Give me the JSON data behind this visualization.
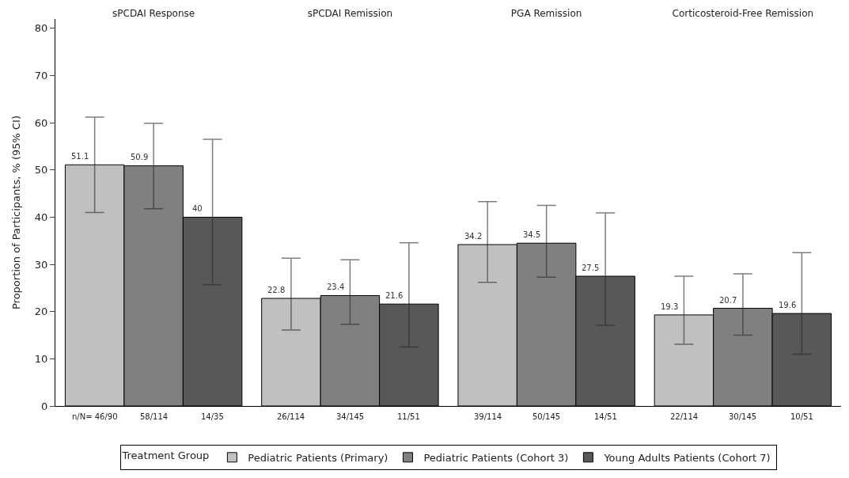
{
  "chart_data": {
    "type": "bar",
    "ylabel": "Proportion of Participants, % (95% CI)",
    "legend_title": "Treatment Group",
    "categories": [
      "sPCDAI Response",
      "sPCDAI Remission",
      "PGA Remission",
      "Corticosteroid-Free Remission"
    ],
    "series": [
      {
        "name": "Pediatric Patients (Primary)",
        "color": "#c0c0c0",
        "values": [
          51.1,
          22.8,
          34.2,
          19.3
        ],
        "errors": [
          [
            41.0,
            61.2
          ],
          [
            16.1,
            31.3
          ],
          [
            26.2,
            43.3
          ],
          [
            13.1,
            27.5
          ]
        ]
      },
      {
        "name": "Pediatric Patients (Cohort 3)",
        "color": "#808080",
        "values": [
          50.9,
          23.4,
          34.5,
          20.7
        ],
        "errors": [
          [
            41.8,
            59.9
          ],
          [
            17.3,
            31.0
          ],
          [
            27.3,
            42.5
          ],
          [
            15.0,
            28.0
          ]
        ]
      },
      {
        "name": "Young Adults Patients (Cohort 7)",
        "color": "#585858",
        "values": [
          40,
          21.6,
          27.5,
          19.6
        ],
        "errors": [
          [
            25.7,
            56.5
          ],
          [
            12.5,
            34.6
          ],
          [
            17.1,
            40.9
          ],
          [
            11.0,
            32.5
          ]
        ]
      }
    ],
    "annotations": [
      "n/N= 46/90",
      "58/114",
      "14/35",
      "26/114",
      "34/145",
      "11/51",
      "39/114",
      "50/145",
      "14/51",
      "22/114",
      "30/145",
      "10/51"
    ],
    "data_labels": true,
    "ylim": [
      0,
      82
    ],
    "yticks": [
      0,
      10,
      20,
      30,
      40,
      50,
      60,
      70,
      80
    ],
    "legend": "bottom"
  }
}
